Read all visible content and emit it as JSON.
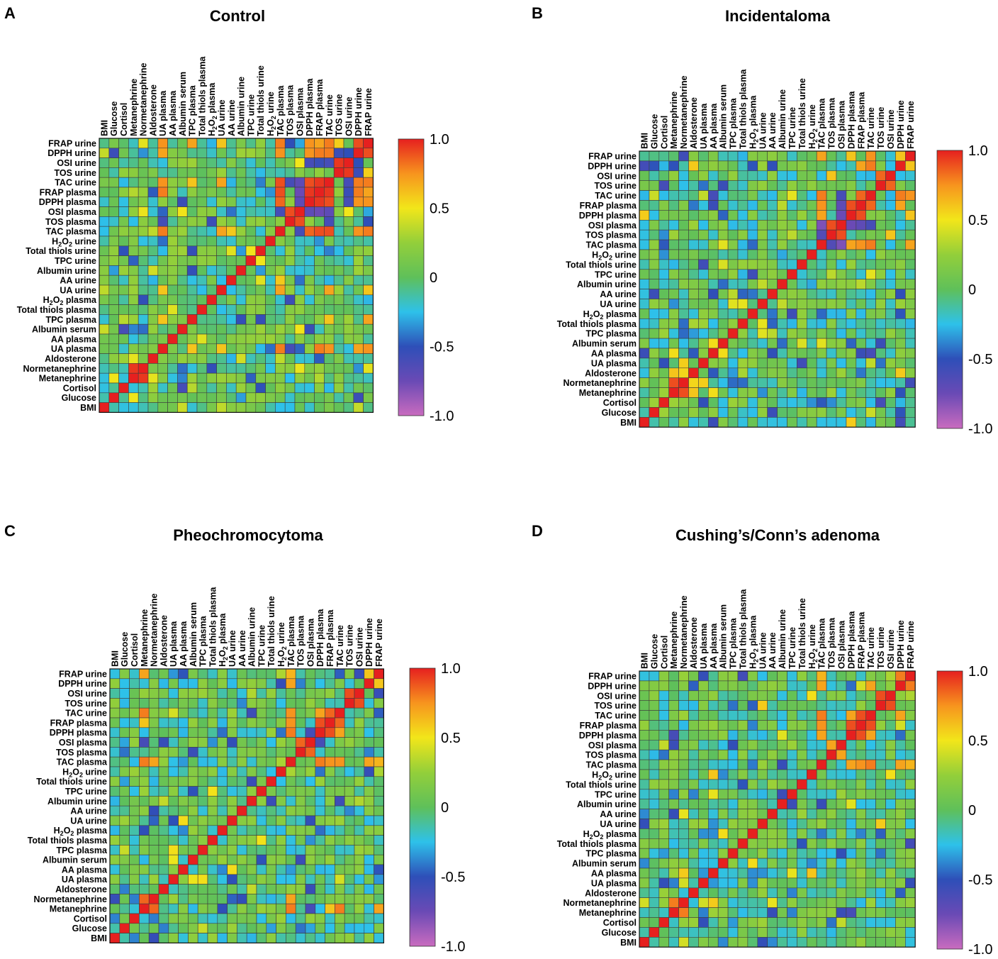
{
  "panels": [
    {
      "letter": "A",
      "title": "Control",
      "seed": 11,
      "cells": [
        {
          "r": "FRAP urine",
          "c": "UA plasma",
          "v": 0.75
        },
        {
          "r": "FRAP urine",
          "c": "TPC plasma",
          "v": 0.7
        },
        {
          "r": "FRAP urine",
          "c": "UA urine",
          "v": 0.6
        },
        {
          "r": "FRAP urine",
          "c": "TAC plasma",
          "v": 0.8
        },
        {
          "r": "FRAP urine",
          "c": "TOS plasma",
          "v": -0.5
        },
        {
          "r": "FRAP urine",
          "c": "DPPH plasma",
          "v": 0.75
        },
        {
          "r": "FRAP urine",
          "c": "FRAP plasma",
          "v": 0.7
        },
        {
          "r": "FRAP urine",
          "c": "TAC urine",
          "v": 0.8
        },
        {
          "r": "FRAP urine",
          "c": "DPPH urine",
          "v": 0.9
        },
        {
          "r": "DPPH urine",
          "c": "UA plasma",
          "v": 0.7
        },
        {
          "r": "DPPH urine",
          "c": "TAC plasma",
          "v": 0.75
        },
        {
          "r": "DPPH urine",
          "c": "DPPH plasma",
          "v": 0.75
        },
        {
          "r": "DPPH urine",
          "c": "FRAP plasma",
          "v": 0.8
        },
        {
          "r": "DPPH urine",
          "c": "TAC urine",
          "v": 0.8
        },
        {
          "r": "DPPH urine",
          "c": "OSI urine",
          "v": -0.5
        },
        {
          "r": "OSI urine",
          "c": "TOS urine",
          "v": 0.95
        },
        {
          "r": "OSI urine",
          "c": "TAC urine",
          "v": -0.6
        },
        {
          "r": "OSI urine",
          "c": "FRAP plasma",
          "v": -0.55
        },
        {
          "r": "OSI urine",
          "c": "DPPH plasma",
          "v": -0.6
        },
        {
          "r": "OSI urine",
          "c": "OSI plasma",
          "v": 0.5
        },
        {
          "r": "TAC urine",
          "c": "FRAP plasma",
          "v": 0.95
        },
        {
          "r": "TAC urine",
          "c": "DPPH plasma",
          "v": 0.9
        },
        {
          "r": "TAC urine",
          "c": "TAC plasma",
          "v": 0.9
        },
        {
          "r": "TAC urine",
          "c": "OSI plasma",
          "v": -0.7
        },
        {
          "r": "TAC urine",
          "c": "TOS plasma",
          "v": -0.6
        },
        {
          "r": "TAC urine",
          "c": "UA plasma",
          "v": 0.75
        },
        {
          "r": "TAC urine",
          "c": "UA urine",
          "v": 0.7
        },
        {
          "r": "TAC urine",
          "c": "TPC plasma",
          "v": 0.6
        },
        {
          "r": "FRAP plasma",
          "c": "DPPH plasma",
          "v": 0.95
        },
        {
          "r": "FRAP plasma",
          "c": "TAC plasma",
          "v": 0.9
        },
        {
          "r": "FRAP plasma",
          "c": "OSI plasma",
          "v": -0.75
        },
        {
          "r": "FRAP plasma",
          "c": "UA plasma",
          "v": 0.8
        },
        {
          "r": "DPPH plasma",
          "c": "TAC plasma",
          "v": 0.85
        },
        {
          "r": "DPPH plasma",
          "c": "OSI plasma",
          "v": -0.7
        },
        {
          "r": "OSI plasma",
          "c": "TOS plasma",
          "v": 0.9
        },
        {
          "r": "OSI plasma",
          "c": "TAC plasma",
          "v": -0.6
        },
        {
          "r": "TAC plasma",
          "c": "UA plasma",
          "v": 0.8
        },
        {
          "r": "TAC plasma",
          "c": "UA urine",
          "v": 0.7
        },
        {
          "r": "UA urine",
          "c": "UA plasma",
          "v": 0.6
        },
        {
          "r": "Normetanephrine",
          "c": "Metanephrine",
          "v": 0.95
        },
        {
          "r": "TPC plasma",
          "c": "UA plasma",
          "v": 0.6
        }
      ]
    },
    {
      "letter": "B",
      "title": "Incidentaloma",
      "seed": 23,
      "cells": [
        {
          "r": "FRAP urine",
          "c": "TAC plasma",
          "v": 0.7
        },
        {
          "r": "FRAP urine",
          "c": "DPPH plasma",
          "v": 0.6
        },
        {
          "r": "FRAP urine",
          "c": "TAC urine",
          "v": 0.75
        },
        {
          "r": "FRAP urine",
          "c": "DPPH urine",
          "v": 0.6
        },
        {
          "r": "DPPH urine",
          "c": "TAC urine",
          "v": 0.8
        },
        {
          "r": "DPPH urine",
          "c": "FRAP plasma",
          "v": 0.7
        },
        {
          "r": "OSI urine",
          "c": "TOS urine",
          "v": 0.85
        },
        {
          "r": "OSI urine",
          "c": "TOS plasma",
          "v": 0.6
        },
        {
          "r": "TOS urine",
          "c": "Albumin serum",
          "v": -0.55
        },
        {
          "r": "TAC urine",
          "c": "FRAP plasma",
          "v": 0.85
        },
        {
          "r": "TAC urine",
          "c": "TAC plasma",
          "v": 0.8
        },
        {
          "r": "TAC urine",
          "c": "OSI plasma",
          "v": -0.6
        },
        {
          "r": "FRAP plasma",
          "c": "DPPH plasma",
          "v": 0.9
        },
        {
          "r": "FRAP plasma",
          "c": "TAC plasma",
          "v": 0.75
        },
        {
          "r": "FRAP plasma",
          "c": "OSI plasma",
          "v": -0.7
        },
        {
          "r": "DPPH plasma",
          "c": "OSI plasma",
          "v": -0.75
        },
        {
          "r": "DPPH plasma",
          "c": "TAC plasma",
          "v": 0.7
        },
        {
          "r": "OSI plasma",
          "c": "TOS plasma",
          "v": 0.9
        },
        {
          "r": "OSI plasma",
          "c": "TAC plasma",
          "v": -0.8
        },
        {
          "r": "TOS plasma",
          "c": "TAC plasma",
          "v": -0.65
        },
        {
          "r": "Normetanephrine",
          "c": "Metanephrine",
          "v": 0.9
        },
        {
          "r": "Aldosterone",
          "c": "Metanephrine",
          "v": 0.6
        },
        {
          "r": "Aldosterone",
          "c": "Normetanephrine",
          "v": 0.55
        },
        {
          "r": "AA plasma",
          "c": "BMI",
          "v": -0.55
        },
        {
          "r": "AA plasma",
          "c": "FRAP plasma",
          "v": -0.55
        },
        {
          "r": "AA plasma",
          "c": "TAC urine",
          "v": -0.6
        }
      ]
    },
    {
      "letter": "C",
      "title": "Pheochromocytoma",
      "seed": 37,
      "cells": [
        {
          "r": "FRAP urine",
          "c": "Metanephrine",
          "v": 0.7
        },
        {
          "r": "FRAP urine",
          "c": "TAC plasma",
          "v": 0.65
        },
        {
          "r": "FRAP urine",
          "c": "DPPH urine",
          "v": 0.6
        },
        {
          "r": "DPPH urine",
          "c": "TAC plasma",
          "v": 0.7
        },
        {
          "r": "OSI urine",
          "c": "TOS urine",
          "v": 0.9
        },
        {
          "r": "TAC urine",
          "c": "Metanephrine",
          "v": 0.8
        },
        {
          "r": "TAC urine",
          "c": "FRAP plasma",
          "v": 0.85
        },
        {
          "r": "TAC urine",
          "c": "DPPH plasma",
          "v": 0.7
        },
        {
          "r": "TAC urine",
          "c": "TAC plasma",
          "v": 0.75
        },
        {
          "r": "FRAP plasma",
          "c": "DPPH plasma",
          "v": 0.9
        },
        {
          "r": "FRAP plasma",
          "c": "TAC plasma",
          "v": 0.75
        },
        {
          "r": "FRAP plasma",
          "c": "Metanephrine",
          "v": 0.6
        },
        {
          "r": "DPPH plasma",
          "c": "TAC plasma",
          "v": 0.8
        },
        {
          "r": "DPPH plasma",
          "c": "OSI plasma",
          "v": -0.6
        },
        {
          "r": "OSI plasma",
          "c": "TOS plasma",
          "v": 0.85
        },
        {
          "r": "OSI plasma",
          "c": "Metanephrine",
          "v": -0.6
        },
        {
          "r": "TAC plasma",
          "c": "Metanephrine",
          "v": 0.8
        },
        {
          "r": "TAC plasma",
          "c": "Normetanephrine",
          "v": 0.7
        },
        {
          "r": "Normetanephrine",
          "c": "Metanephrine",
          "v": 0.85
        },
        {
          "r": "H2O2 plasma",
          "c": "Metanephrine",
          "v": -0.5
        },
        {
          "r": "Albumin serum",
          "c": "TOS plasma",
          "v": -0.55
        }
      ]
    },
    {
      "letter": "D",
      "title": "Cushing’s/Conn’s adenoma",
      "seed": 53,
      "cells": [
        {
          "r": "FRAP urine",
          "c": "DPPH urine",
          "v": 0.8
        },
        {
          "r": "FRAP urine",
          "c": "TAC plasma",
          "v": 0.65
        },
        {
          "r": "DPPH urine",
          "c": "TAC plasma",
          "v": 0.7
        },
        {
          "r": "DPPH urine",
          "c": "TAC urine",
          "v": 0.7
        },
        {
          "r": "OSI urine",
          "c": "TOS urine",
          "v": 0.9
        },
        {
          "r": "TAC urine",
          "c": "FRAP plasma",
          "v": 0.9
        },
        {
          "r": "TAC urine",
          "c": "DPPH plasma",
          "v": 0.7
        },
        {
          "r": "TAC urine",
          "c": "TAC plasma",
          "v": 0.8
        },
        {
          "r": "FRAP plasma",
          "c": "DPPH plasma",
          "v": 0.9
        },
        {
          "r": "FRAP plasma",
          "c": "TAC plasma",
          "v": 0.75
        },
        {
          "r": "DPPH plasma",
          "c": "TAC plasma",
          "v": 0.7
        },
        {
          "r": "TOS plasma",
          "c": "OSI plasma",
          "v": 0.7
        },
        {
          "r": "Normetanephrine",
          "c": "Metanephrine",
          "v": 0.8
        },
        {
          "r": "Metanephrine",
          "c": "DPPH plasma",
          "v": -0.6
        },
        {
          "r": "Metanephrine",
          "c": "OSI plasma",
          "v": -0.55
        }
      ]
    }
  ],
  "variables": [
    "BMI",
    "Glucose",
    "Cortisol",
    "Metanephrine",
    "Normetanephrine",
    "Aldosterone",
    "UA plasma",
    "AA plasma",
    "Albumin serum",
    "TPC plasma",
    "Total thiols plasma",
    "H2O2 plasma",
    "UA urine",
    "AA urine",
    "Albumin urine",
    "TPC urine",
    "Total thiols urine",
    "H2O2 urine",
    "TAC plasma",
    "TOS plasma",
    "OSI plasma",
    "DPPH plasma",
    "FRAP plasma",
    "TAC urine",
    "TOS urine",
    "OSI urine",
    "DPPH urine",
    "FRAP urine"
  ],
  "colorbar": {
    "ticks": [
      "1.0",
      "0.5",
      "0",
      "-0.5",
      "-1.0"
    ],
    "stops": [
      {
        "v": -1.0,
        "color": "#c96bbf"
      },
      {
        "v": -0.75,
        "color": "#6a4ab5"
      },
      {
        "v": -0.5,
        "color": "#2e4fb8"
      },
      {
        "v": -0.25,
        "color": "#2ec1ea"
      },
      {
        "v": 0.0,
        "color": "#5fc05a"
      },
      {
        "v": 0.25,
        "color": "#93cf3a"
      },
      {
        "v": 0.5,
        "color": "#f2e61a"
      },
      {
        "v": 0.75,
        "color": "#f7941e"
      },
      {
        "v": 1.0,
        "color": "#e6201f"
      }
    ]
  },
  "chart_data": [
    {
      "type": "heatmap",
      "title": "Control",
      "panel": "A",
      "range": [
        -1.0,
        1.0
      ]
    },
    {
      "type": "heatmap",
      "title": "Incidentaloma",
      "panel": "B",
      "range": [
        -1.0,
        1.0
      ]
    },
    {
      "type": "heatmap",
      "title": "Pheochromocytoma",
      "panel": "C",
      "range": [
        -1.0,
        1.0
      ]
    },
    {
      "type": "heatmap",
      "title": "Cushing’s/Conn’s adenoma",
      "panel": "D",
      "range": [
        -1.0,
        1.0
      ]
    }
  ]
}
